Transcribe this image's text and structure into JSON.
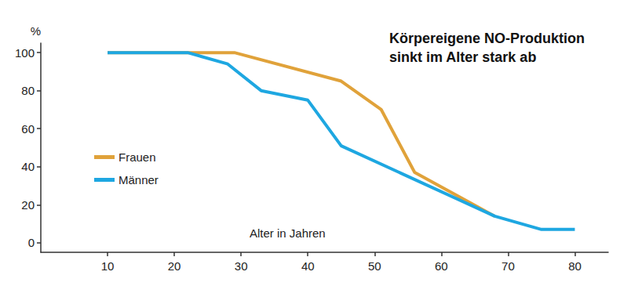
{
  "chart_data": {
    "type": "line",
    "title": "Körpereigene NO-Produktion\nsinkt im Alter stark ab",
    "x_label": "Alter in Jahren",
    "y_label": "%",
    "series": [
      {
        "name": "Frauen",
        "color": "#e0a23a",
        "x": [
          10,
          22,
          29,
          45,
          51,
          56,
          68
        ],
        "values": [
          100,
          100,
          100,
          85,
          70,
          37,
          14
        ]
      },
      {
        "name": "Männer",
        "color": "#1ea7e1",
        "x": [
          10,
          22,
          28,
          33,
          40,
          45,
          68,
          75,
          80
        ],
        "values": [
          100,
          100,
          94,
          80,
          75,
          51,
          14,
          7,
          7
        ]
      }
    ],
    "xlim": [
      0,
      85
    ],
    "xticks": [
      10,
      20,
      30,
      40,
      50,
      60,
      70,
      80
    ],
    "ylim": [
      -5,
      105
    ],
    "yticks": [
      0,
      20,
      40,
      60,
      80,
      100
    ],
    "grid": false,
    "legend": "left"
  }
}
